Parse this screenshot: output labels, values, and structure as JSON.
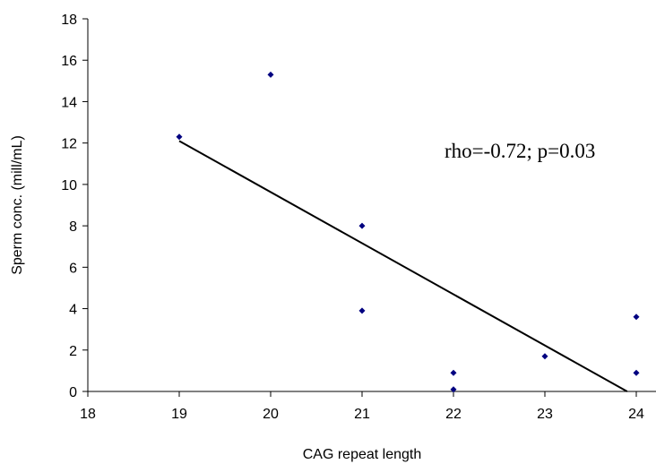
{
  "chart_data": {
    "type": "scatter",
    "xlabel": "CAG repeat length",
    "ylabel": "Sperm conc. (mill/mL)",
    "xlim": [
      18,
      24
    ],
    "ylim": [
      0,
      18
    ],
    "x_ticks": [
      "18",
      "19",
      "20",
      "21",
      "22",
      "23",
      "24"
    ],
    "y_ticks": [
      "0",
      "2",
      "4",
      "6",
      "8",
      "10",
      "12",
      "14",
      "16",
      "18"
    ],
    "grid": false,
    "legend": "none",
    "marker": "diamond",
    "marker_color": "#000080",
    "points": [
      {
        "x": 19,
        "y": 12.3
      },
      {
        "x": 20,
        "y": 15.3
      },
      {
        "x": 21,
        "y": 8.0
      },
      {
        "x": 21,
        "y": 3.9
      },
      {
        "x": 22,
        "y": 0.9
      },
      {
        "x": 22,
        "y": 0.1
      },
      {
        "x": 23,
        "y": 1.7
      },
      {
        "x": 24,
        "y": 3.6
      },
      {
        "x": 24,
        "y": 0.9
      }
    ],
    "trendline": {
      "type": "linear",
      "start": {
        "x": 19,
        "y": 12.1
      },
      "end": {
        "x": 23.9,
        "y": 0
      },
      "color": "#000000"
    },
    "annotation": "rho=-0.72; p=0.03"
  }
}
